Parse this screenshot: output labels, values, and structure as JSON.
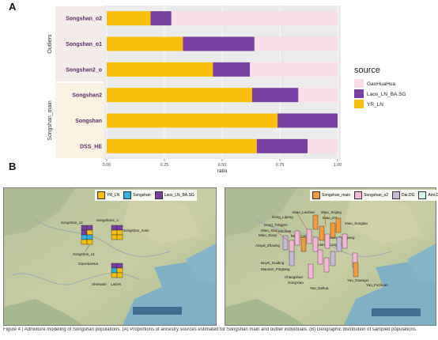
{
  "panel_labels": {
    "a": "A",
    "b": "B"
  },
  "chart_data": {
    "type": "bar",
    "orientation": "horizontal",
    "stacked": true,
    "categories": [
      "Songshan_o2",
      "Songshan_o1",
      "Songshan2_o",
      "Songshan2",
      "Songshan",
      "DSS_HE"
    ],
    "groups": [
      {
        "label": "Outliers",
        "members": [
          "Songshan_o2",
          "Songshan_o1",
          "Songshan2_o"
        ]
      },
      {
        "label": "Songshan_main",
        "members": [
          "Songshan2",
          "Songshan",
          "DSS_HE"
        ]
      }
    ],
    "series": [
      {
        "name": "YR_LN",
        "color": "#F8BF0C",
        "values": [
          0.19,
          0.33,
          0.46,
          0.63,
          0.74,
          0.65
        ]
      },
      {
        "name": "Laos_LN_BA.SG",
        "color": "#7A3FA3",
        "values": [
          0.09,
          0.31,
          0.16,
          0.2,
          0.26,
          0.22
        ]
      },
      {
        "name": "GaoHuaHua",
        "color": "#F9DDE9",
        "values": [
          0.72,
          0.36,
          0.38,
          0.17,
          0.0,
          0.13
        ]
      }
    ],
    "xlabel": "ratio",
    "xlim": [
      0,
      1
    ],
    "xticks": [
      "0.00",
      "0.25",
      "0.50",
      "0.75",
      "1.00"
    ],
    "legend_title": "source",
    "legend_position": "right"
  },
  "map_left": {
    "legend": [
      {
        "label": "YR_LN",
        "color": "#F8BF0C"
      },
      {
        "label": "Songshan",
        "color": "#2BB5E4"
      },
      {
        "label": "Laos_LN_BA.SG",
        "color": "#7A3FA3"
      }
    ],
    "labels": [
      "Songshan_o2",
      "Songshan2_o",
      "Songshan_main",
      "Songshan_o1",
      "GaoHuaHua",
      "Shenwan",
      "LaCen"
    ]
  },
  "map_right": {
    "legend": [
      {
        "label": "Songshan_main",
        "color": "#F39A3A"
      },
      {
        "label": "Songshan_o2",
        "color": "#F7B6D8"
      },
      {
        "label": "Dai.DG",
        "color": "#C9B8D9"
      },
      {
        "label": "Ami.DG",
        "color": "#D9F3F1"
      }
    ],
    "labels": [
      "Miao_Leishan",
      "Miao_Xiajing",
      "Miao_DY",
      "Dong_Lipeng",
      "Dong_Tongren",
      "Miao_Xiao",
      "Miao_Zunyi",
      "Maonan",
      "Atayal_Zhaxing",
      "Buyei_Guiding",
      "Maonan_Pingtang",
      "Changshan",
      "GongYiao",
      "Yao_Dahua",
      "Miao_Songtao",
      "Miao_Congjiang",
      "Dulang_Congjiang",
      "Miao_Cao",
      "Yao_Guangxi",
      "Yao_Fuchuan"
    ]
  },
  "caption": "Figure 4 | Admixture modeling of Songshan populations. (A) Proportions of ancestry sources estimated for Songshan main and outlier individuals. (B) Geographic distribution of sampled populations."
}
